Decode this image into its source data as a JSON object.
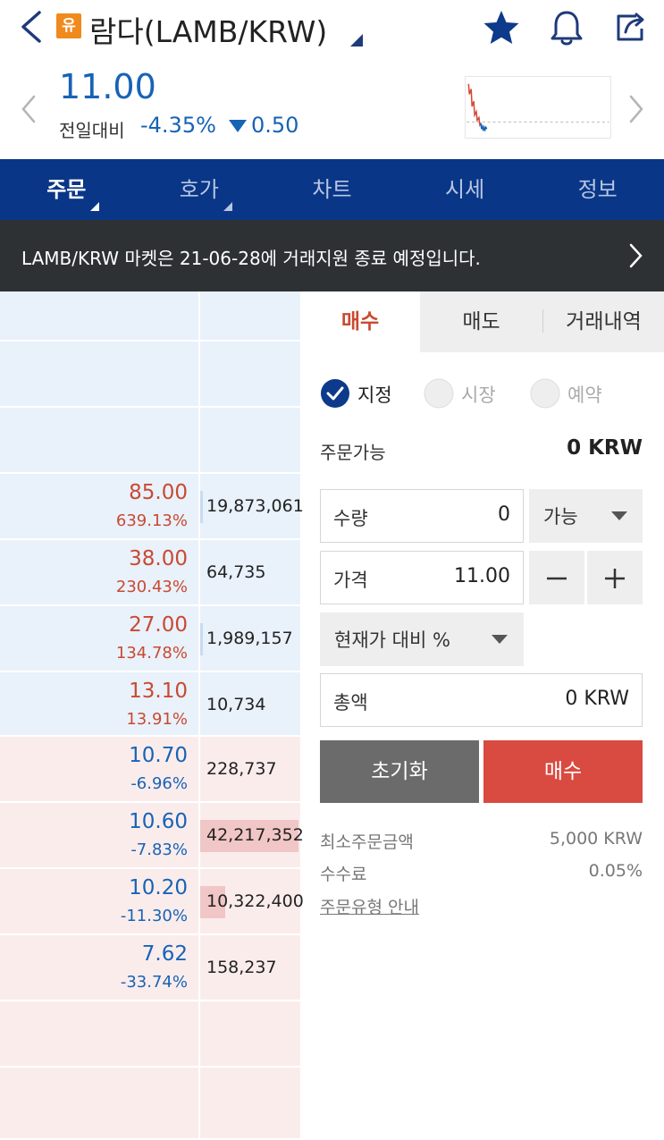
{
  "header": {
    "badge": "유",
    "title": "람다(LAMB/KRW)"
  },
  "price": {
    "current": "11.00",
    "change_label": "전일대비",
    "change_pct": "-4.35%",
    "change_amt": "0.50",
    "direction": "down"
  },
  "nav": {
    "tabs": [
      {
        "label": "주문"
      },
      {
        "label": "호가"
      },
      {
        "label": "차트"
      },
      {
        "label": "시세"
      },
      {
        "label": "정보"
      }
    ]
  },
  "notice": {
    "text": "LAMB/KRW 마켓은 21-06-28에 거래지원 종료 예정입니다."
  },
  "orderbook": {
    "asks": [
      {
        "price": "85.00",
        "pct": "639.13%",
        "qty": "19,873,061",
        "bar": 0.02
      },
      {
        "price": "38.00",
        "pct": "230.43%",
        "qty": "64,735",
        "bar": 0.0
      },
      {
        "price": "27.00",
        "pct": "134.78%",
        "qty": "1,989,157",
        "bar": 0.01
      },
      {
        "price": "13.10",
        "pct": "13.91%",
        "qty": "10,734",
        "bar": 0.0
      }
    ],
    "bids": [
      {
        "price": "10.70",
        "pct": "-6.96%",
        "qty": "228,737",
        "bar": 0.0
      },
      {
        "price": "10.60",
        "pct": "-7.83%",
        "qty": "42,217,352",
        "bar": 1.0
      },
      {
        "price": "10.20",
        "pct": "-11.30%",
        "qty": "10,322,400",
        "bar": 0.25
      },
      {
        "price": "7.62",
        "pct": "-33.74%",
        "qty": "158,237",
        "bar": 0.0
      }
    ]
  },
  "order": {
    "tabs": [
      {
        "label": "매수"
      },
      {
        "label": "매도"
      },
      {
        "label": "거래내역"
      }
    ],
    "order_types": [
      {
        "label": "지정",
        "checked": true
      },
      {
        "label": "시장",
        "checked": false
      },
      {
        "label": "예약",
        "checked": false
      }
    ],
    "available_label": "주문가능",
    "available_value": "0 KRW",
    "qty_label": "수량",
    "qty_value": "0",
    "qty_option": "가능",
    "price_label": "가격",
    "price_value": "11.00",
    "pct_select": "현재가 대비 %",
    "total_label": "총액",
    "total_value": "0 KRW",
    "reset_label": "초기화",
    "buy_label": "매수",
    "min_order_label": "최소주문금액",
    "min_order_value": "5,000 KRW",
    "fee_label": "수수료",
    "fee_value": "0.05%",
    "guide_label": "주문유형 안내"
  },
  "colors": {
    "accent": "#093687",
    "rise": "#c84a31",
    "fall": "#1763b6",
    "buy": "#d94a40"
  }
}
